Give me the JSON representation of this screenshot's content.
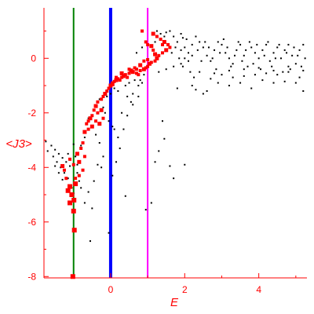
{
  "chart_data": {
    "type": "scatter",
    "xlabel": "E",
    "ylabel": "<J3>",
    "xlim": [
      -1.8,
      5.3
    ],
    "ylim": [
      -8.05,
      1.85
    ],
    "xticks": [
      0,
      2,
      4
    ],
    "yticks": [
      0,
      -2,
      -4,
      -6,
      -8
    ],
    "grid": false,
    "colors": {
      "axis": "#ff0000",
      "black_points": "#000000",
      "red_points": "#ff0000"
    },
    "vertical_lines": [
      {
        "x": -1.0,
        "color": "#008000"
      },
      {
        "x": 0.0,
        "color": "#0000ff"
      },
      {
        "x": 1.0,
        "color": "#ff00ff"
      }
    ],
    "series": [
      {
        "color": "#ff0000",
        "points": [
          [
            -1.02,
            -8.0
          ],
          [
            -0.98,
            -6.3
          ],
          [
            -1.0,
            -5.6
          ],
          [
            -0.99,
            -5.2
          ],
          [
            -1.15,
            -4.85
          ],
          [
            -1.1,
            -4.7
          ],
          [
            -0.95,
            -4.6
          ],
          [
            -1.2,
            -4.4
          ],
          [
            -1.25,
            -4.1
          ],
          [
            -1.3,
            -3.95
          ],
          [
            -1.0,
            -3.9
          ],
          [
            -1.1,
            -3.7
          ],
          [
            -0.9,
            -3.5
          ],
          [
            -0.8,
            -3.3
          ],
          [
            -0.75,
            -3.1
          ],
          [
            -0.7,
            -2.7
          ],
          [
            -0.65,
            -2.4
          ],
          [
            -0.6,
            -2.3
          ],
          [
            -0.55,
            -2.2
          ],
          [
            -0.5,
            -2.1
          ],
          [
            -0.45,
            -1.9
          ],
          [
            -0.4,
            -1.75
          ],
          [
            -0.35,
            -1.6
          ],
          [
            -0.4,
            -2.3
          ],
          [
            -0.3,
            -2.4
          ],
          [
            -0.25,
            -1.5
          ],
          [
            -0.2,
            -1.4
          ],
          [
            -0.15,
            -1.3
          ],
          [
            -0.1,
            -1.2
          ],
          [
            -0.05,
            -1.1
          ],
          [
            0.0,
            -1.0
          ],
          [
            0.05,
            -0.9
          ],
          [
            0.1,
            -0.85
          ],
          [
            0.15,
            -0.8
          ],
          [
            0.2,
            -0.75
          ],
          [
            0.3,
            -0.7
          ],
          [
            0.35,
            -0.65
          ],
          [
            0.4,
            -0.6
          ],
          [
            0.5,
            -0.55
          ],
          [
            0.6,
            -0.5
          ],
          [
            0.7,
            -0.55
          ],
          [
            0.8,
            -0.45
          ],
          [
            0.9,
            -0.4
          ],
          [
            0.95,
            -0.35
          ],
          [
            1.0,
            -0.3
          ],
          [
            1.05,
            -0.2
          ],
          [
            1.1,
            -0.15
          ],
          [
            1.2,
            -0.1
          ],
          [
            1.25,
            0.0
          ],
          [
            1.3,
            0.1
          ],
          [
            1.4,
            0.2
          ],
          [
            1.5,
            0.3
          ],
          [
            1.6,
            0.4
          ],
          [
            1.55,
            0.5
          ],
          [
            1.45,
            0.6
          ],
          [
            1.35,
            0.7
          ],
          [
            1.25,
            0.8
          ],
          [
            1.15,
            0.9
          ],
          [
            0.85,
            1.0
          ],
          [
            1.0,
            0.5
          ],
          [
            -0.25,
            -1.9
          ],
          [
            -0.35,
            -2.0
          ],
          [
            -0.2,
            -2.2
          ],
          [
            0.05,
            -0.95
          ],
          [
            0.25,
            -0.8
          ],
          [
            0.45,
            -0.7
          ],
          [
            0.55,
            -0.45
          ],
          [
            0.75,
            -0.6
          ],
          [
            -0.6,
            -2.6
          ],
          [
            -0.5,
            -2.5
          ],
          [
            -0.85,
            -4.3
          ],
          [
            -0.75,
            -4.1
          ],
          [
            -0.85,
            -3.8
          ],
          [
            -0.7,
            -3.6
          ],
          [
            -1.05,
            -5.0
          ],
          [
            -1.1,
            -5.3
          ],
          [
            -0.95,
            -4.4
          ],
          [
            0.15,
            -0.7
          ],
          [
            0.3,
            -0.55
          ],
          [
            0.5,
            -0.4
          ],
          [
            0.65,
            -0.35
          ],
          [
            0.8,
            -0.25
          ],
          [
            0.9,
            -0.1
          ],
          [
            1.15,
            0.3
          ],
          [
            1.2,
            0.15
          ],
          [
            1.4,
            0.5
          ],
          [
            0.95,
            0.6
          ],
          [
            1.1,
            0.45
          ],
          [
            1.0,
            -0.05
          ],
          [
            0.7,
            -0.4
          ]
        ]
      },
      {
        "color": "#000000",
        "points": [
          [
            -1.75,
            -3.05
          ],
          [
            -1.6,
            -3.2
          ],
          [
            -1.5,
            -3.35
          ],
          [
            -1.4,
            -3.5
          ],
          [
            -1.3,
            -3.65
          ],
          [
            -1.2,
            -3.8
          ],
          [
            -1.1,
            -3.95
          ],
          [
            -1.7,
            -3.4
          ],
          [
            -1.55,
            -3.6
          ],
          [
            -1.45,
            -3.8
          ],
          [
            -1.35,
            -4.0
          ],
          [
            -1.25,
            -4.2
          ],
          [
            -1.15,
            -4.4
          ],
          [
            -1.5,
            -3.95
          ],
          [
            -1.4,
            -4.2
          ],
          [
            -1.3,
            -4.45
          ],
          [
            -0.9,
            -4.2
          ],
          [
            -0.85,
            -4.5
          ],
          [
            -0.8,
            -4.75
          ],
          [
            -0.6,
            -4.9
          ],
          [
            -0.7,
            -5.3
          ],
          [
            -0.5,
            -5.5
          ],
          [
            -0.55,
            -6.7
          ],
          [
            -0.05,
            -6.4
          ],
          [
            0.05,
            -4.3
          ],
          [
            0.15,
            -3.8
          ],
          [
            0.25,
            -3.3
          ],
          [
            0.35,
            -2.6
          ],
          [
            0.45,
            -2.1
          ],
          [
            0.55,
            -1.6
          ],
          [
            0.4,
            -5.05
          ],
          [
            0.6,
            -1.3
          ],
          [
            0.75,
            -1.0
          ],
          [
            0.85,
            -0.9
          ],
          [
            0.95,
            -5.55
          ],
          [
            1.1,
            -5.3
          ],
          [
            1.2,
            -3.8
          ],
          [
            1.3,
            -3.4
          ],
          [
            1.45,
            -2.95
          ],
          [
            1.6,
            -3.95
          ],
          [
            1.7,
            -4.4
          ],
          [
            1.4,
            -2.3
          ],
          [
            2.0,
            -3.9
          ],
          [
            2.5,
            -1.3
          ],
          [
            1.8,
            -1.1
          ],
          [
            2.2,
            -1.0
          ],
          [
            2.6,
            -1.2
          ],
          [
            2.9,
            -0.9
          ],
          [
            3.2,
            -1.0
          ],
          [
            3.5,
            -0.9
          ],
          [
            3.8,
            -1.1
          ],
          [
            4.1,
            -0.8
          ],
          [
            4.4,
            -0.9
          ],
          [
            4.7,
            -0.85
          ],
          [
            5.0,
            -0.9
          ],
          [
            5.2,
            -1.2
          ],
          [
            -0.2,
            -3.6
          ],
          [
            -0.3,
            -3.1
          ],
          [
            -0.4,
            -2.8
          ],
          [
            -0.5,
            -2.5
          ],
          [
            -0.6,
            -2.2
          ],
          [
            -0.35,
            -3.9
          ],
          [
            -0.25,
            -4.0
          ],
          [
            -0.45,
            -4.5
          ],
          [
            -0.8,
            -3.2
          ],
          [
            -0.7,
            -2.9
          ],
          [
            -0.3,
            -1.5
          ],
          [
            -0.2,
            -1.8
          ],
          [
            0.1,
            -2.6
          ],
          [
            0.2,
            -2.9
          ],
          [
            0.3,
            -2.0
          ],
          [
            0.45,
            -1.4
          ],
          [
            0.6,
            -1.7
          ],
          [
            0.75,
            -1.4
          ],
          [
            0.8,
            -0.8
          ],
          [
            0.9,
            -0.6
          ],
          [
            1.3,
            -0.5
          ],
          [
            1.5,
            -0.4
          ],
          [
            1.7,
            -0.3
          ],
          [
            1.9,
            -0.2
          ],
          [
            2.0,
            0.0
          ],
          [
            2.1,
            0.2
          ],
          [
            2.2,
            0.5
          ],
          [
            2.3,
            0.8
          ],
          [
            2.4,
            0.6
          ],
          [
            2.5,
            0.4
          ],
          [
            2.6,
            0.1
          ],
          [
            2.7,
            -0.1
          ],
          [
            2.8,
            0.3
          ],
          [
            2.9,
            0.6
          ],
          [
            3.0,
            0.5
          ],
          [
            3.1,
            0.2
          ],
          [
            3.2,
            0.0
          ],
          [
            3.3,
            -0.2
          ],
          [
            3.4,
            0.3
          ],
          [
            3.5,
            0.5
          ],
          [
            3.6,
            0.1
          ],
          [
            3.7,
            -0.3
          ],
          [
            3.8,
            0.4
          ],
          [
            3.9,
            0.2
          ],
          [
            4.0,
            0.0
          ],
          [
            4.1,
            0.3
          ],
          [
            4.2,
            0.5
          ],
          [
            4.3,
            -0.1
          ],
          [
            4.4,
            0.2
          ],
          [
            4.5,
            0.4
          ],
          [
            4.6,
            0.0
          ],
          [
            4.7,
            0.3
          ],
          [
            4.8,
            0.5
          ],
          [
            4.9,
            0.1
          ],
          [
            5.0,
            -0.2
          ],
          [
            5.1,
            0.3
          ],
          [
            5.2,
            0.5
          ],
          [
            5.25,
            0.0
          ],
          [
            2.05,
            0.7
          ],
          [
            2.35,
            0.3
          ],
          [
            2.45,
            -0.1
          ],
          [
            2.55,
            0.6
          ],
          [
            2.65,
            0.4
          ],
          [
            2.75,
            0.0
          ],
          [
            2.85,
            -0.4
          ],
          [
            2.95,
            0.2
          ],
          [
            3.05,
            0.7
          ],
          [
            3.15,
            0.4
          ],
          [
            3.25,
            -0.3
          ],
          [
            3.35,
            0.1
          ],
          [
            3.45,
            0.6
          ],
          [
            3.55,
            -0.1
          ],
          [
            3.65,
            0.3
          ],
          [
            3.75,
            0.6
          ],
          [
            3.85,
            -0.2
          ],
          [
            3.95,
            0.5
          ],
          [
            4.05,
            -0.4
          ],
          [
            4.15,
            0.1
          ],
          [
            4.25,
            0.6
          ],
          [
            4.35,
            -0.3
          ],
          [
            4.45,
            0.0
          ],
          [
            4.55,
            0.5
          ],
          [
            4.65,
            -0.5
          ],
          [
            4.75,
            0.2
          ],
          [
            4.85,
            -0.4
          ],
          [
            4.95,
            0.4
          ],
          [
            5.05,
            0.1
          ],
          [
            5.15,
            -0.3
          ],
          [
            1.6,
            1.0
          ],
          [
            1.7,
            0.8
          ],
          [
            1.8,
            0.6
          ],
          [
            1.9,
            0.9
          ],
          [
            1.65,
            0.2
          ],
          [
            1.75,
            0.4
          ],
          [
            1.85,
            0.0
          ],
          [
            1.95,
            -0.3
          ],
          [
            2.15,
            -0.5
          ],
          [
            2.25,
            -0.7
          ],
          [
            1.2,
            0.6
          ],
          [
            1.35,
            0.9
          ],
          [
            1.45,
            0.8
          ],
          [
            0.7,
            0.2
          ],
          [
            0.85,
            0.4
          ],
          [
            -0.1,
            -1.4
          ],
          [
            0.0,
            -1.3
          ],
          [
            0.1,
            -1.1
          ],
          [
            0.2,
            -1.2
          ],
          [
            0.4,
            -1.0
          ],
          [
            0.5,
            -0.9
          ],
          [
            0.65,
            -0.8
          ],
          [
            -0.15,
            -2.0
          ],
          [
            -0.05,
            -2.3
          ],
          [
            0.05,
            -2.5
          ],
          [
            -1.05,
            -4.75
          ],
          [
            -1.0,
            -4.95
          ],
          [
            -0.95,
            -3.6
          ],
          [
            -0.9,
            -3.9
          ],
          [
            -1.15,
            -3.5
          ],
          [
            -1.0,
            -3.15
          ],
          [
            2.3,
            -1.15
          ],
          [
            2.7,
            -0.75
          ],
          [
            3.0,
            -0.6
          ],
          [
            3.3,
            -0.7
          ],
          [
            3.6,
            -0.65
          ],
          [
            3.9,
            -0.6
          ],
          [
            4.2,
            -0.55
          ],
          [
            4.5,
            -0.6
          ],
          [
            4.8,
            -0.5
          ],
          [
            5.1,
            -0.7
          ],
          [
            2.4,
            -0.5
          ],
          [
            2.8,
            -0.55
          ],
          [
            3.2,
            -0.45
          ],
          [
            3.6,
            -0.4
          ],
          [
            4.0,
            -0.35
          ],
          [
            4.4,
            -0.45
          ],
          [
            4.8,
            -0.3
          ],
          [
            5.2,
            -0.45
          ],
          [
            1.9,
            0.3
          ],
          [
            2.0,
            0.4
          ],
          [
            2.1,
            -0.1
          ],
          [
            2.2,
            0.1
          ],
          [
            1.25,
            1.0
          ],
          [
            1.5,
            0.95
          ],
          [
            1.95,
            0.75
          ]
        ]
      }
    ]
  }
}
